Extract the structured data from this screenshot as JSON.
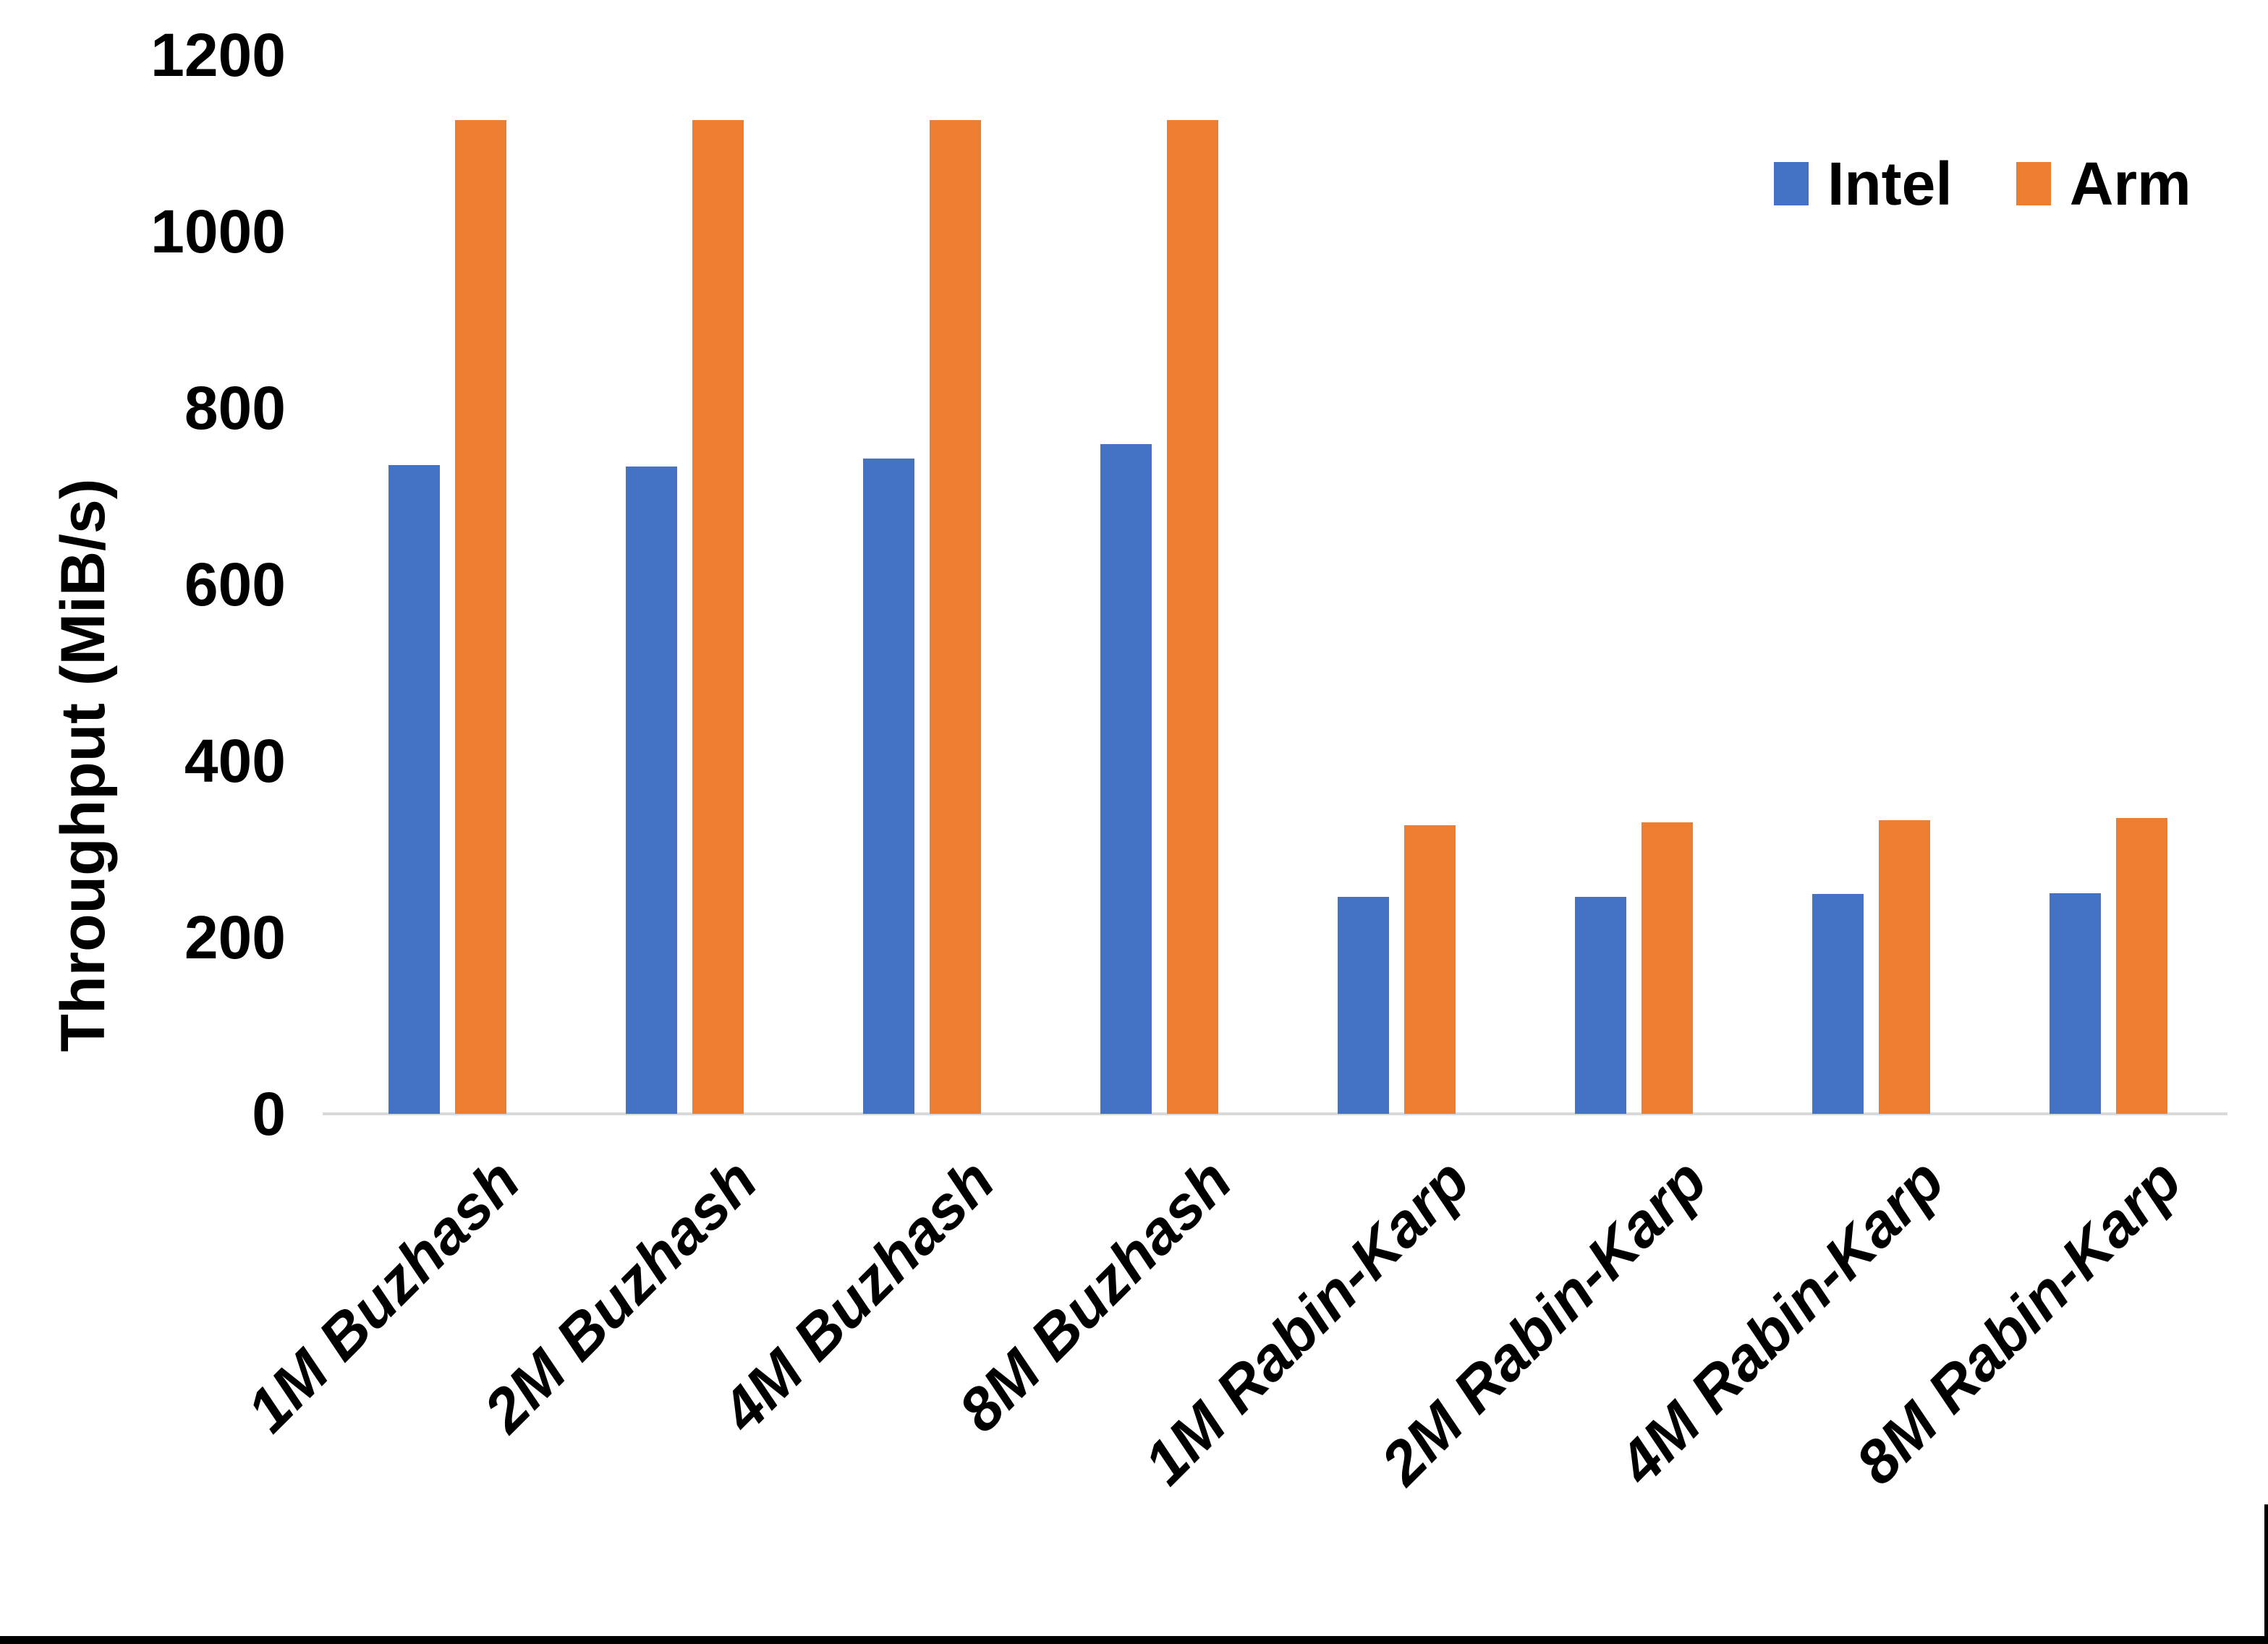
{
  "chart_data": {
    "type": "bar",
    "title": "",
    "xlabel": "",
    "ylabel": "Throughput (MiB/s)",
    "ylim": [
      0,
      1200
    ],
    "yticks": [
      0,
      200,
      400,
      600,
      800,
      1000,
      1200
    ],
    "grid": false,
    "legend_position": "top-right-inside",
    "categories": [
      "1M Buzhash",
      "2M Buzhash",
      "4M Buzhash",
      "8M Buzhash",
      "1M Rabin-Karp",
      "2M Rabin-Karp",
      "4M Rabin-Karp",
      "8M Rabin-Karp"
    ],
    "series": [
      {
        "name": "Intel",
        "color": "#4472C4",
        "values": [
          735,
          734,
          743,
          759,
          246,
          246,
          249,
          250
        ]
      },
      {
        "name": "Arm",
        "color": "#ED7D31",
        "values": [
          1126,
          1126,
          1126,
          1126,
          327,
          330,
          333,
          335
        ]
      }
    ]
  },
  "colors": {
    "background": "#FFFFFF",
    "axis_line": "#D9D9D9",
    "text": "#000000",
    "frame": "#000000",
    "intel": "#4472C4",
    "arm": "#ED7D31"
  }
}
